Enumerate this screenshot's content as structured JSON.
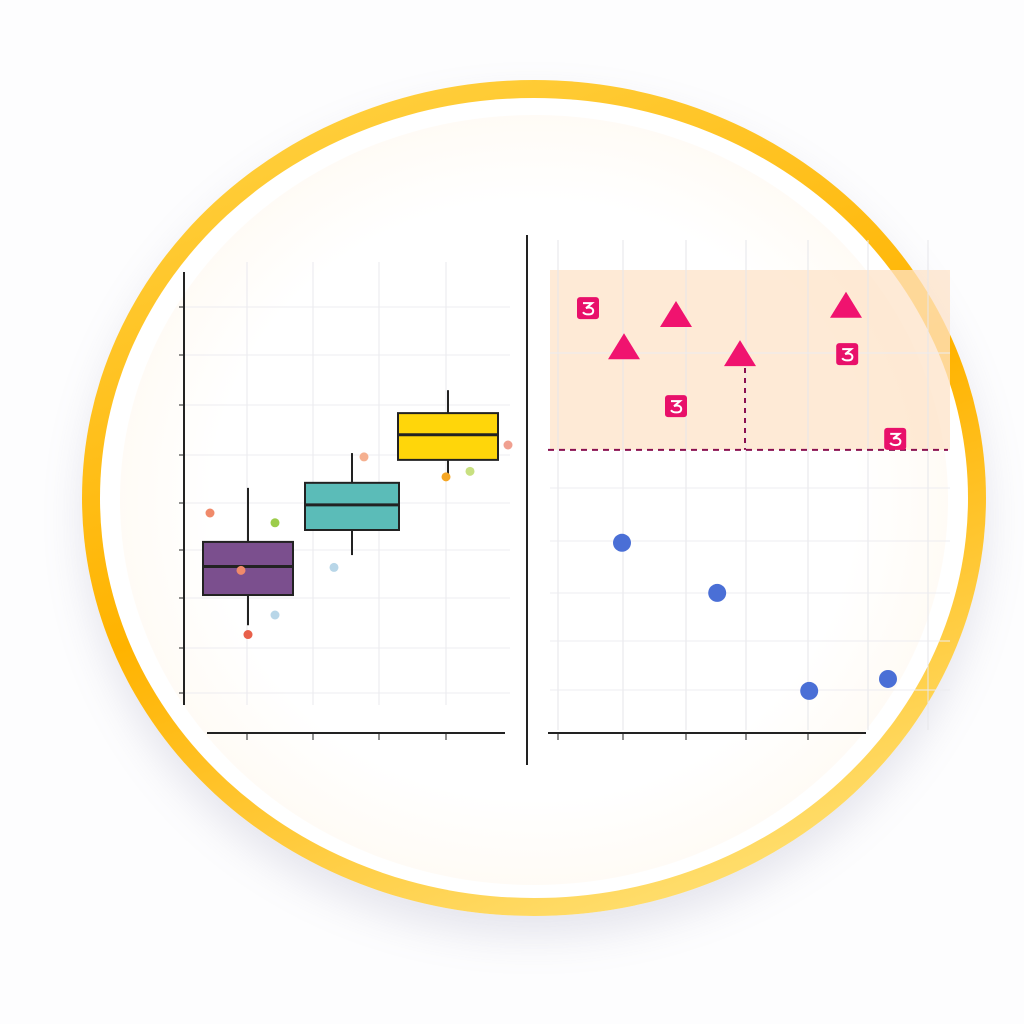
{
  "colors": {
    "ring": "#ffb300",
    "purple": "#7b4f8e",
    "teal": "#5bbcb8",
    "yellow": "#ffd60a",
    "pink": "#f0136f",
    "blue": "#4a6fd6",
    "threshold": "#8a1050",
    "shade": "#fde3c8"
  },
  "chart_data": [
    {
      "type": "box",
      "ylim": [
        0,
        10
      ],
      "grid": true,
      "boxes": [
        {
          "color": "#7b4f8e",
          "min": 1.76,
          "q1": 2.47,
          "median": 3.14,
          "q3": 3.72,
          "max": 4.99
        },
        {
          "color": "#5bbcb8",
          "min": 3.41,
          "q1": 4.0,
          "median": 4.59,
          "q3": 5.11,
          "max": 5.81
        },
        {
          "color": "#ffd60a",
          "min": 5.22,
          "q1": 5.65,
          "median": 6.24,
          "q3": 6.75,
          "max": 7.29
        }
      ],
      "points": [
        {
          "group": 0,
          "offset": -0.38,
          "y": 4.4,
          "color": "#f08a6a"
        },
        {
          "group": 0,
          "offset": -0.07,
          "y": 3.05,
          "color": "#f08a6a"
        },
        {
          "group": 0,
          "offset": 0.0,
          "y": 1.54,
          "color": "#e8604a"
        },
        {
          "group": 0,
          "offset": 0.27,
          "y": 2.0,
          "color": "#b8d6e8"
        },
        {
          "group": 0,
          "offset": 0.27,
          "y": 4.17,
          "color": "#9ccc4a"
        },
        {
          "group": 1,
          "offset": -0.18,
          "y": 3.12,
          "color": "#b8d6e8"
        },
        {
          "group": 1,
          "offset": 0.12,
          "y": 5.72,
          "color": "#f5b090"
        },
        {
          "group": 2,
          "offset": -0.02,
          "y": 5.25,
          "color": "#f5a623"
        },
        {
          "group": 2,
          "offset": 0.22,
          "y": 5.38,
          "color": "#c8e080"
        },
        {
          "group": 2,
          "offset": 0.6,
          "y": 6.0,
          "color": "#f0a090"
        }
      ]
    },
    {
      "type": "scatter",
      "xlim": [
        0,
        10
      ],
      "ylim": [
        0,
        10
      ],
      "grid": true,
      "threshold": 6.09,
      "series": [
        {
          "marker": "triangle",
          "color": "#f0136f",
          "x": [
            1.85,
            3.15,
            4.75,
            7.4
          ],
          "y": [
            8.3,
            9.0,
            8.15,
            9.2
          ]
        },
        {
          "marker": "square-glyph",
          "color": "#e8106a",
          "x": [
            0.95,
            3.15,
            7.43,
            8.63
          ],
          "y": [
            9.17,
            7.04,
            8.17,
            6.33
          ]
        },
        {
          "marker": "circle",
          "color": "#4a6fd6",
          "x": [
            1.8,
            4.18,
            6.48,
            8.45
          ],
          "y": [
            4.07,
            2.98,
            0.85,
            1.11
          ]
        }
      ]
    }
  ]
}
